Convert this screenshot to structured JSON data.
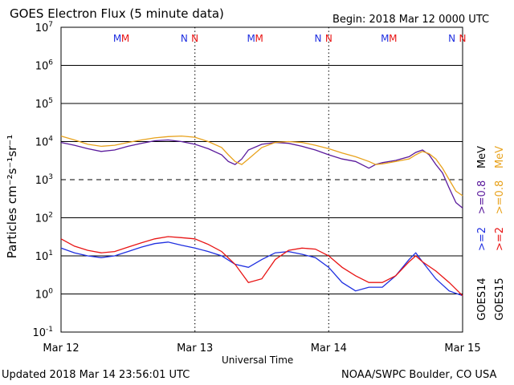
{
  "header": {
    "title": "GOES Electron Flux (5 minute data)",
    "begin": "Begin: 2018 Mar 12 0000 UTC"
  },
  "footer": {
    "updated": "Updated 2018 Mar 14 23:56:01 UTC",
    "credit": "NOAA/SWPC Boulder, CO USA"
  },
  "colors": {
    "goes14_08": "#5a1a9c",
    "goes15_08": "#e8a21c",
    "goes14_2": "#1f2fe0",
    "goes15_2": "#e81414"
  },
  "chart_data": {
    "type": "line",
    "title": "GOES Electron Flux (5 minute data)",
    "xlabel": "Universal Time",
    "ylabel": "Particles cm⁻²s⁻¹sr⁻¹",
    "yscale": "log",
    "ylim": [
      0.1,
      10000000
    ],
    "xlim": [
      0,
      3
    ],
    "x_ticks": [
      {
        "x": 0,
        "label": "Mar 12"
      },
      {
        "x": 1,
        "label": "Mar 13"
      },
      {
        "x": 2,
        "label": "Mar 14"
      },
      {
        "x": 3,
        "label": "Mar 15"
      }
    ],
    "y_ticks": [
      {
        "v": 0.1,
        "base": "10",
        "exp": "-1"
      },
      {
        "v": 1,
        "base": "10",
        "exp": "0"
      },
      {
        "v": 10,
        "base": "10",
        "exp": "1"
      },
      {
        "v": 100,
        "base": "10",
        "exp": "2"
      },
      {
        "v": 1000,
        "base": "10",
        "exp": "3"
      },
      {
        "v": 10000,
        "base": "10",
        "exp": "4"
      },
      {
        "v": 100000,
        "base": "10",
        "exp": "5"
      },
      {
        "v": 1000000,
        "base": "10",
        "exp": "6"
      },
      {
        "v": 10000000,
        "base": "10",
        "exp": "7"
      }
    ],
    "threshold": 1000,
    "grid": true,
    "markers": [
      {
        "x": 0.42,
        "label": "M",
        "color": "#1f2fe0"
      },
      {
        "x": 0.48,
        "label": "M",
        "color": "#e81414"
      },
      {
        "x": 0.92,
        "label": "N",
        "color": "#1f2fe0"
      },
      {
        "x": 1.0,
        "label": "N",
        "color": "#e81414"
      },
      {
        "x": 1.42,
        "label": "M",
        "color": "#1f2fe0"
      },
      {
        "x": 1.48,
        "label": "M",
        "color": "#e81414"
      },
      {
        "x": 1.92,
        "label": "N",
        "color": "#1f2fe0"
      },
      {
        "x": 2.0,
        "label": "N",
        "color": "#e81414"
      },
      {
        "x": 2.42,
        "label": "M",
        "color": "#1f2fe0"
      },
      {
        "x": 2.48,
        "label": "M",
        "color": "#e81414"
      },
      {
        "x": 2.92,
        "label": "N",
        "color": "#1f2fe0"
      },
      {
        "x": 3.0,
        "label": "N",
        "color": "#e81414"
      }
    ],
    "right_labels": {
      "goes14_08": ">=0.8",
      "goes15_08": ">=0.8",
      "mev": "MeV",
      "goes14_2": ">=2",
      "goes15_2": ">=2",
      "goes14": "GOES14",
      "goes15": "GOES15"
    },
    "series": [
      {
        "name": "GOES14 >=0.8 MeV",
        "color": "#5a1a9c",
        "x": [
          0,
          0.1,
          0.2,
          0.3,
          0.4,
          0.5,
          0.6,
          0.7,
          0.8,
          0.9,
          1.0,
          1.1,
          1.2,
          1.25,
          1.3,
          1.35,
          1.4,
          1.5,
          1.6,
          1.7,
          1.8,
          1.9,
          2.0,
          2.1,
          2.2,
          2.3,
          2.35,
          2.4,
          2.5,
          2.6,
          2.65,
          2.7,
          2.75,
          2.8,
          2.85,
          2.9,
          2.95,
          3.0
        ],
        "y": [
          9500,
          8000,
          6500,
          5500,
          6000,
          7500,
          9000,
          10500,
          11000,
          10000,
          8500,
          6500,
          4500,
          3000,
          2500,
          3500,
          6000,
          8500,
          9500,
          9000,
          7500,
          6000,
          4500,
          3500,
          3000,
          2000,
          2500,
          2800,
          3200,
          4000,
          5200,
          6000,
          4500,
          2500,
          1500,
          600,
          250,
          180
        ]
      },
      {
        "name": "GOES15 >=0.8 MeV",
        "color": "#e8a21c",
        "x": [
          0,
          0.1,
          0.2,
          0.3,
          0.4,
          0.5,
          0.6,
          0.7,
          0.8,
          0.9,
          1.0,
          1.1,
          1.2,
          1.25,
          1.3,
          1.35,
          1.4,
          1.5,
          1.6,
          1.7,
          1.8,
          1.9,
          2.0,
          2.1,
          2.2,
          2.3,
          2.35,
          2.4,
          2.5,
          2.6,
          2.65,
          2.7,
          2.75,
          2.8,
          2.85,
          2.9,
          2.95,
          3.0
        ],
        "y": [
          14000,
          11000,
          8500,
          7500,
          8000,
          9500,
          11000,
          12500,
          13500,
          14000,
          13000,
          10000,
          7000,
          4500,
          3000,
          2500,
          3500,
          7000,
          9500,
          10000,
          9500,
          8000,
          6500,
          5000,
          4000,
          3000,
          2500,
          2600,
          3000,
          3500,
          4500,
          5500,
          4800,
          3500,
          2000,
          1000,
          500,
          380
        ]
      },
      {
        "name": "GOES14 >=2 MeV",
        "color": "#1f2fe0",
        "x": [
          0,
          0.1,
          0.2,
          0.3,
          0.4,
          0.5,
          0.6,
          0.7,
          0.8,
          0.9,
          1.0,
          1.1,
          1.2,
          1.3,
          1.4,
          1.5,
          1.6,
          1.7,
          1.8,
          1.9,
          2.0,
          2.1,
          2.2,
          2.3,
          2.4,
          2.5,
          2.6,
          2.65,
          2.7,
          2.8,
          2.9,
          3.0
        ],
        "y": [
          16,
          12,
          10,
          9,
          10,
          13,
          17,
          21,
          23,
          19,
          16,
          13,
          10,
          6,
          5,
          8,
          12,
          13,
          11,
          9,
          5,
          2,
          1.2,
          1.5,
          1.5,
          3,
          8,
          12,
          7,
          2.5,
          1.2,
          0.9
        ]
      },
      {
        "name": "GOES15 >=2 MeV",
        "color": "#e81414",
        "x": [
          0,
          0.1,
          0.2,
          0.3,
          0.4,
          0.5,
          0.6,
          0.7,
          0.8,
          0.9,
          1.0,
          1.1,
          1.2,
          1.3,
          1.4,
          1.5,
          1.6,
          1.7,
          1.8,
          1.9,
          2.0,
          2.1,
          2.2,
          2.3,
          2.4,
          2.5,
          2.6,
          2.65,
          2.7,
          2.8,
          2.9,
          3.0
        ],
        "y": [
          28,
          18,
          14,
          12,
          13,
          17,
          22,
          28,
          32,
          30,
          28,
          20,
          13,
          6,
          2,
          2.5,
          8,
          14,
          16,
          15,
          10,
          5,
          3,
          2,
          2,
          3,
          7,
          10,
          7,
          4,
          2,
          0.9
        ]
      }
    ]
  }
}
